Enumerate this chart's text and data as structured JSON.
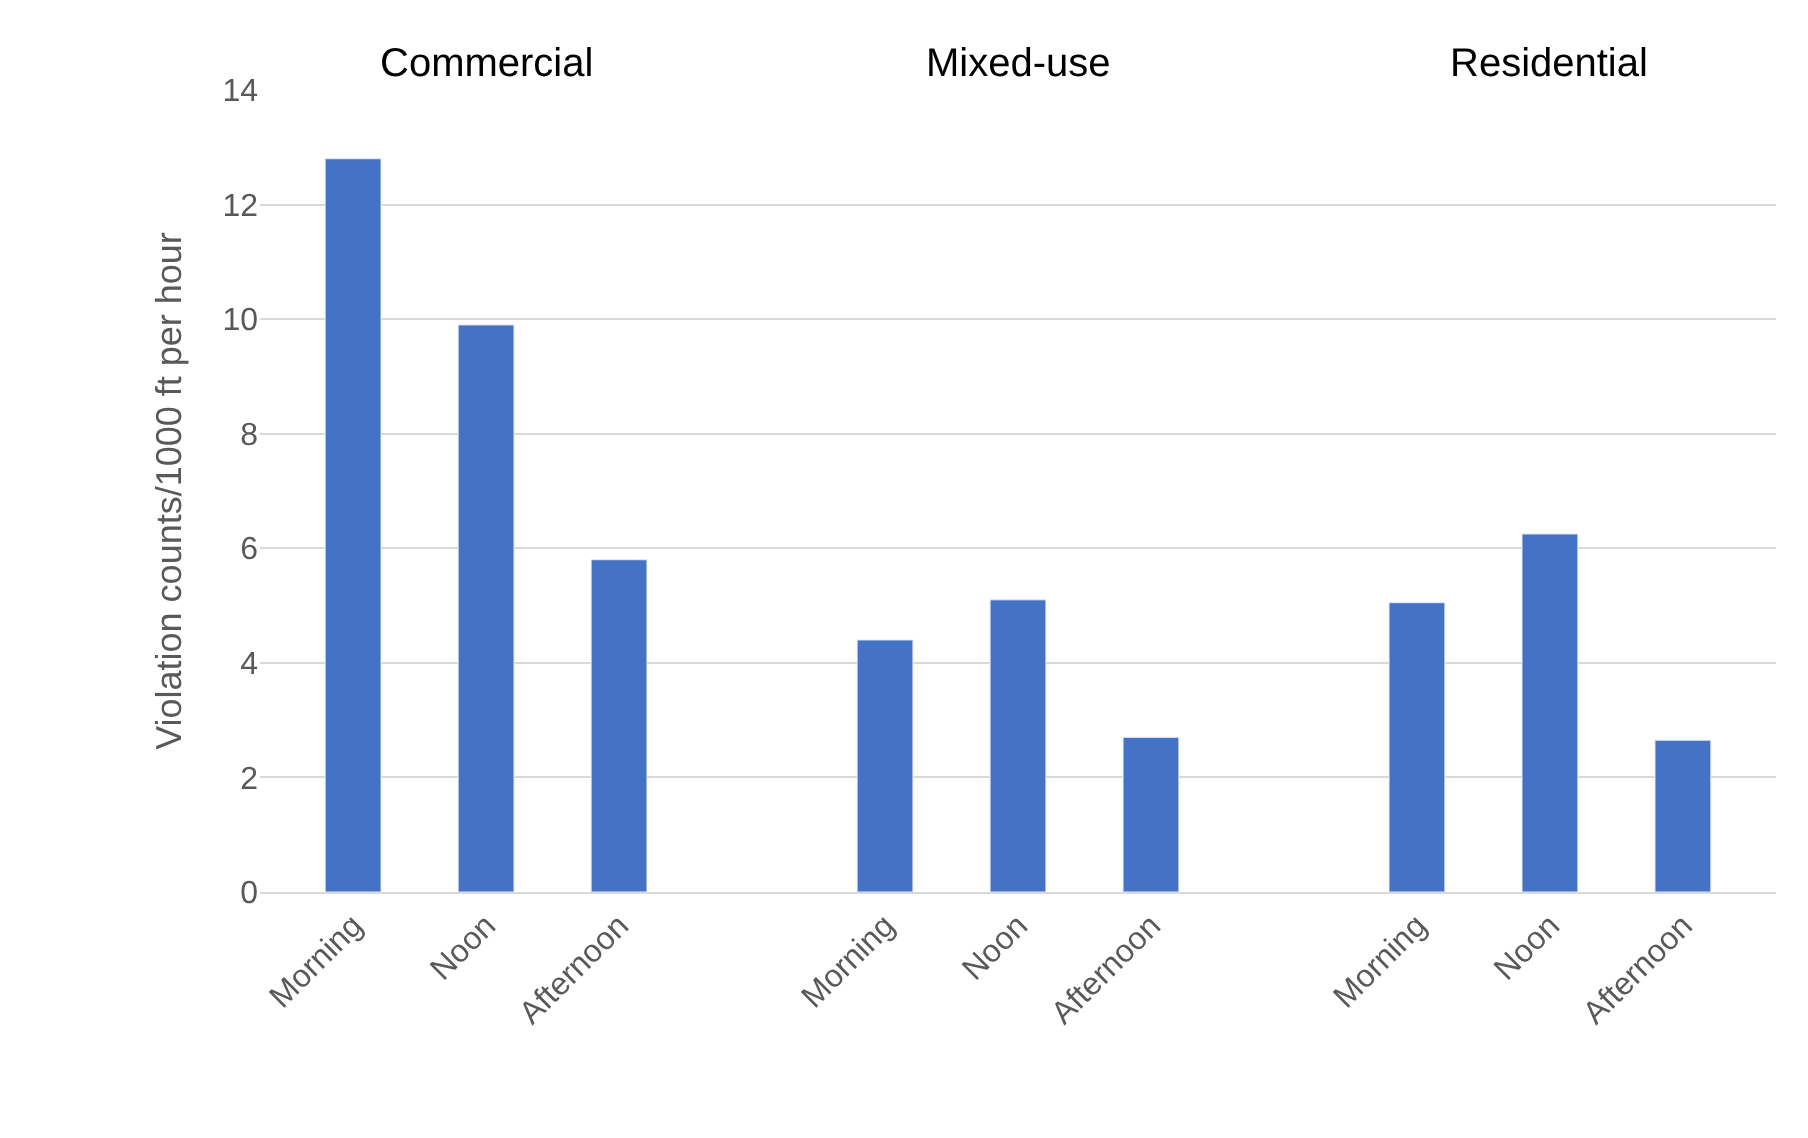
{
  "chart_data": {
    "type": "bar",
    "ylabel": "Violation counts/1000 ft per hour",
    "categories": [
      "Morning",
      "Noon",
      "Afternoon",
      null,
      "Morning",
      "Noon",
      "Afternoon",
      null,
      "Morning",
      "Noon",
      "Afternoon"
    ],
    "values": [
      12.8,
      9.9,
      5.8,
      null,
      4.4,
      5.1,
      2.7,
      null,
      5.05,
      6.25,
      2.65
    ],
    "color": "#4472c4",
    "ylim": [
      0,
      14
    ],
    "yticks": [
      0,
      2,
      4,
      6,
      8,
      10,
      12,
      14
    ],
    "grid": "y",
    "annotations": [
      "Commercial",
      "Mixed-use",
      "Residential"
    ]
  }
}
